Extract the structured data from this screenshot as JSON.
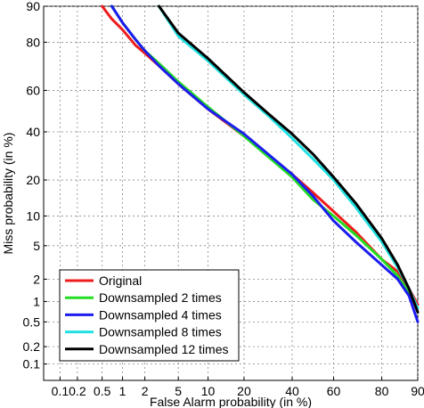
{
  "chart_data": {
    "type": "line",
    "title": "",
    "xlabel": "False Alarm probability (in %)",
    "ylabel": "Miss probability (in %)",
    "xscale": "probit",
    "yscale": "probit",
    "xlim": [
      0.05,
      90
    ],
    "ylim": [
      0.05,
      90
    ],
    "x_ticks": [
      0.1,
      0.2,
      0.5,
      1,
      2,
      5,
      10,
      20,
      40,
      60,
      80,
      90
    ],
    "x_tick_labels": [
      "0.1",
      "0.2",
      "0.5",
      "1",
      "2",
      "5",
      "10",
      "20",
      "40",
      "60",
      "80",
      "90"
    ],
    "y_ticks": [
      0.1,
      0.2,
      0.5,
      1,
      2,
      5,
      10,
      20,
      40,
      60,
      80,
      90
    ],
    "y_tick_labels": [
      "0.1",
      "0.2",
      "0.5",
      "1",
      "2",
      "5",
      "10",
      "20",
      "40",
      "60",
      "80",
      "90"
    ],
    "grid": true,
    "legend_position": "bottom-left",
    "series": [
      {
        "name": "Original",
        "color": "#ee1c1c",
        "x": [
          0.5,
          0.7,
          1,
          1.5,
          2,
          3,
          5,
          10,
          20,
          40,
          50,
          60,
          70,
          80,
          85,
          88,
          90
        ],
        "y": [
          90,
          87,
          84,
          79,
          76,
          71,
          63,
          51,
          38,
          22,
          16,
          11,
          7,
          3.5,
          2.5,
          1.5,
          0.9
        ]
      },
      {
        "name": "Downsampled 2 times",
        "color": "#22dd22",
        "x": [
          0.7,
          1,
          1.5,
          2,
          3,
          5,
          10,
          20,
          40,
          50,
          60,
          70,
          80,
          85,
          88,
          90
        ],
        "y": [
          90,
          86,
          81,
          77,
          72,
          64,
          52,
          38,
          21,
          14,
          10,
          6.5,
          3.5,
          2.2,
          1.3,
          0.8
        ]
      },
      {
        "name": "Downsampled 4 times",
        "color": "#1c1cee",
        "x": [
          0.7,
          1,
          1.5,
          2,
          3,
          5,
          10,
          20,
          40,
          50,
          60,
          70,
          80,
          85,
          88,
          90
        ],
        "y": [
          90,
          86,
          81,
          77,
          71,
          63,
          51,
          39,
          22,
          15,
          9,
          5.5,
          3,
          2,
          1.2,
          0.5
        ]
      },
      {
        "name": "Downsampled 8 times",
        "color": "#22e0e0",
        "x": [
          3,
          5,
          10,
          20,
          30,
          40,
          50,
          60,
          70,
          80,
          85,
          88,
          90
        ],
        "y": [
          90,
          82,
          73,
          58,
          47,
          37,
          28,
          20,
          12,
          5.5,
          2.8,
          1.5,
          0.8
        ]
      },
      {
        "name": "Downsampled 12 times",
        "color": "#000000",
        "x": [
          3,
          5,
          10,
          20,
          30,
          40,
          50,
          60,
          70,
          80,
          85,
          88,
          90
        ],
        "y": [
          90,
          83,
          74,
          59,
          48,
          39,
          30,
          21,
          13,
          6,
          3,
          1.5,
          0.7
        ]
      }
    ]
  }
}
